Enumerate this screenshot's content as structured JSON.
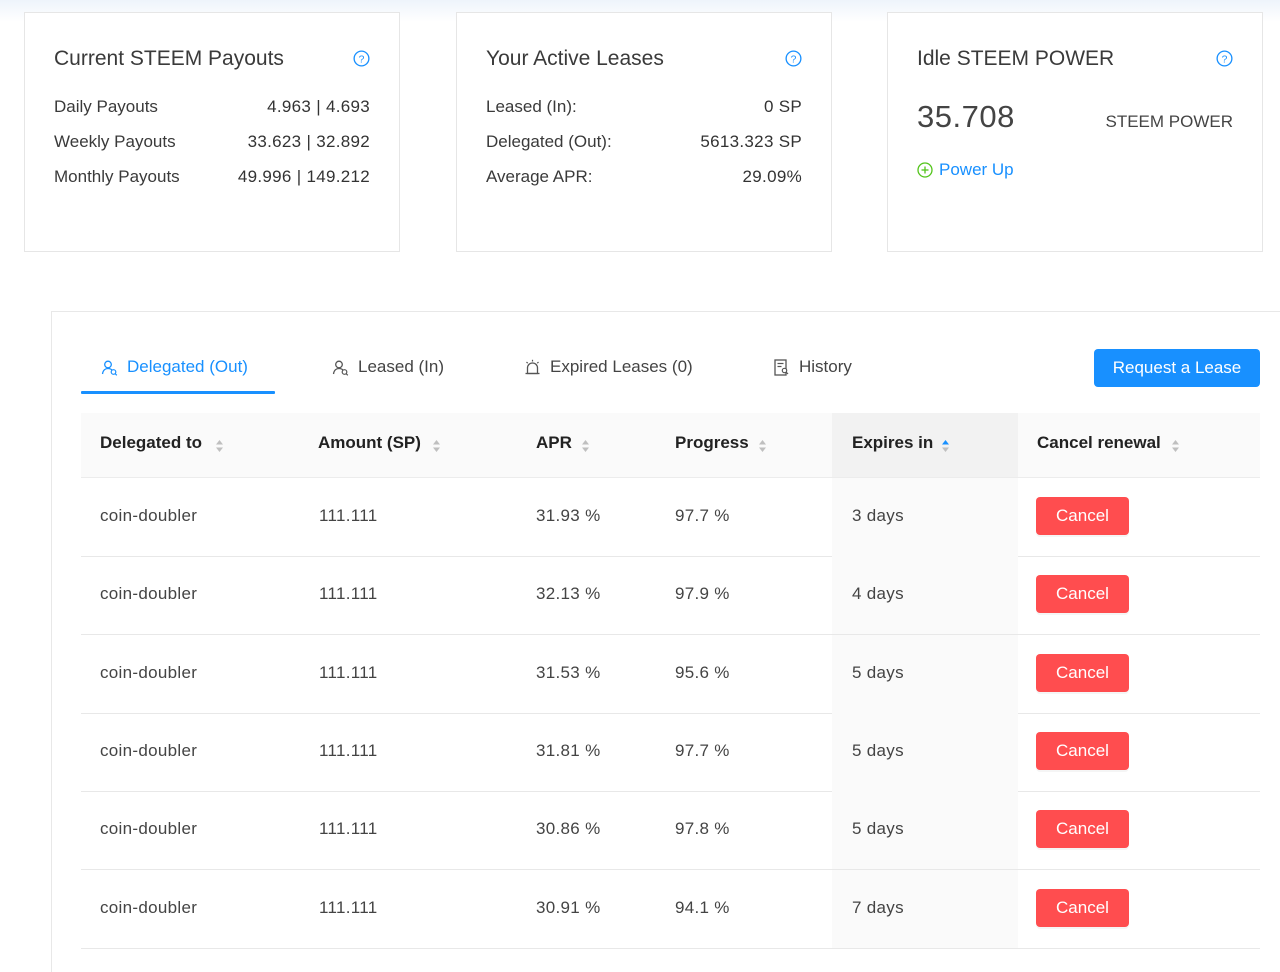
{
  "colors": {
    "accent": "#1890ff",
    "danger": "#ff4d4f",
    "success": "#52c41a"
  },
  "payouts_card": {
    "title": "Current STEEM Payouts",
    "rows": [
      {
        "label": "Daily Payouts",
        "value": "4.963 | 4.693"
      },
      {
        "label": "Weekly Payouts",
        "value": "33.623 | 32.892"
      },
      {
        "label": "Monthly Payouts",
        "value": "49.996 | 149.212"
      }
    ]
  },
  "leases_card": {
    "title": "Your Active Leases",
    "rows": [
      {
        "label": "Leased (In):",
        "value": "0 SP"
      },
      {
        "label": "Delegated (Out):",
        "value": "5613.323 SP"
      },
      {
        "label": "Average APR:",
        "value": "29.09%"
      }
    ]
  },
  "idle_card": {
    "title": "Idle STEEM POWER",
    "value": "35.708",
    "unit": "STEEM POWER",
    "power_up_label": "Power Up"
  },
  "tabs": [
    {
      "label": "Delegated (Out)",
      "icon": "users-icon",
      "active": true
    },
    {
      "label": "Leased (In)",
      "icon": "users-icon",
      "active": false
    },
    {
      "label": "Expired Leases (0)",
      "icon": "alarm-icon",
      "active": false
    },
    {
      "label": "History",
      "icon": "document-icon",
      "active": false
    }
  ],
  "request_button": "Request a Lease",
  "table": {
    "columns": [
      "Delegated to",
      "Amount (SP)",
      "APR",
      "Progress",
      "Expires in",
      "Cancel renewal"
    ],
    "sorted_column": "Expires in",
    "rows": [
      {
        "delegatee": "coin-doubler",
        "amount": "111.111",
        "apr": "31.93 %",
        "progress": "97.7 %",
        "expires": "3 days",
        "action": "Cancel"
      },
      {
        "delegatee": "coin-doubler",
        "amount": "111.111",
        "apr": "32.13 %",
        "progress": "97.9 %",
        "expires": "4 days",
        "action": "Cancel"
      },
      {
        "delegatee": "coin-doubler",
        "amount": "111.111",
        "apr": "31.53 %",
        "progress": "95.6 %",
        "expires": "5 days",
        "action": "Cancel"
      },
      {
        "delegatee": "coin-doubler",
        "amount": "111.111",
        "apr": "31.81 %",
        "progress": "97.7 %",
        "expires": "5 days",
        "action": "Cancel"
      },
      {
        "delegatee": "coin-doubler",
        "amount": "111.111",
        "apr": "30.86 %",
        "progress": "97.8 %",
        "expires": "5 days",
        "action": "Cancel"
      },
      {
        "delegatee": "coin-doubler",
        "amount": "111.111",
        "apr": "30.91 %",
        "progress": "94.1 %",
        "expires": "7 days",
        "action": "Cancel"
      }
    ]
  }
}
